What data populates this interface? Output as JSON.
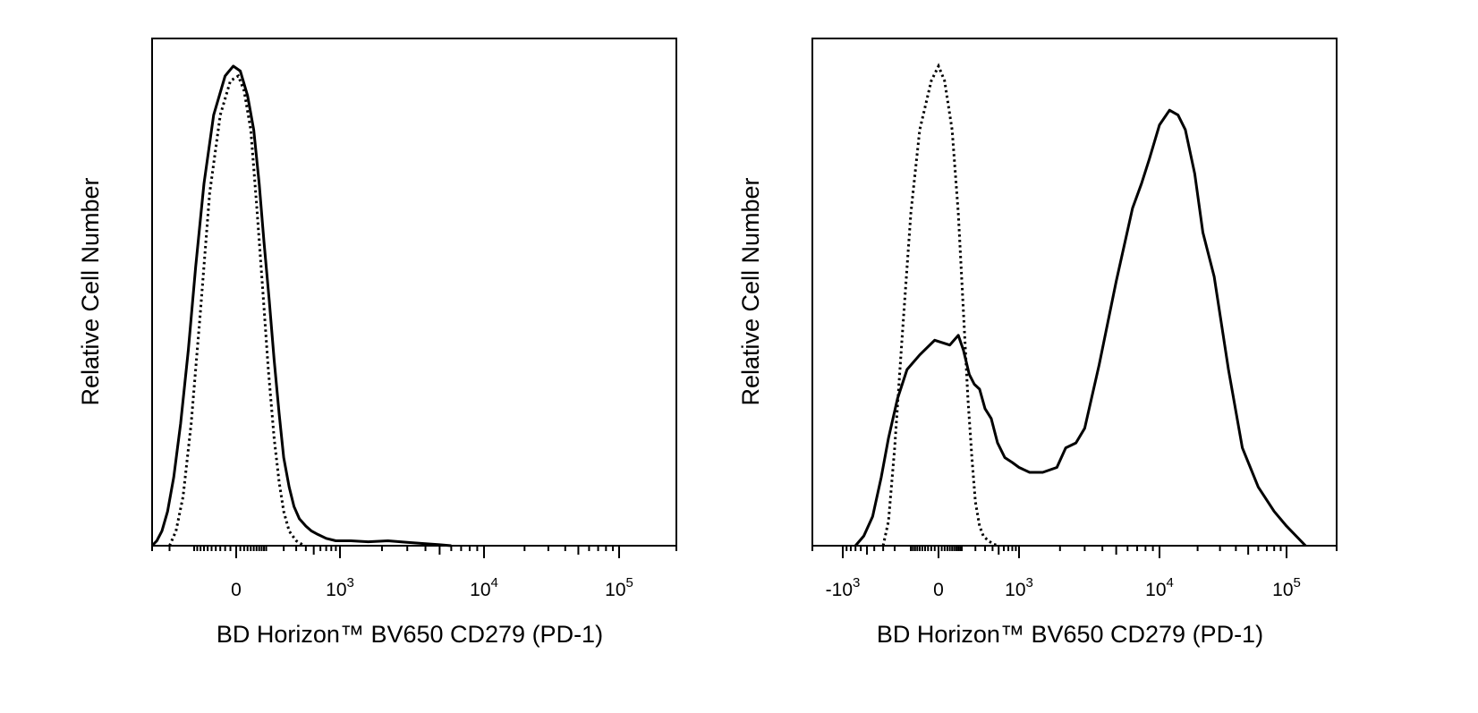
{
  "chart_data": [
    {
      "type": "line",
      "title": "",
      "xlabel": "BD Horizon™ BV650 CD279 (PD-1)",
      "ylabel": "Relative Cell Number",
      "x_scale": "biexponential",
      "xlim": [
        -300,
        200000
      ],
      "ylim": [
        0,
        100
      ],
      "grid": false,
      "legend": "none",
      "x_tick_labels": [
        {
          "value": 0,
          "base": "0",
          "exp": ""
        },
        {
          "value": 1000,
          "base": "10",
          "exp": "3"
        },
        {
          "value": 10000,
          "base": "10",
          "exp": "4"
        },
        {
          "value": 100000,
          "base": "10",
          "exp": "5"
        }
      ],
      "series": [
        {
          "style": "solid",
          "x": [
            -300,
            -270,
            -240,
            -210,
            -180,
            -150,
            -120,
            -95,
            -70,
            -45,
            -20,
            -5,
            10,
            30,
            50,
            70,
            90,
            115,
            140,
            170,
            200,
            240,
            280,
            330,
            400,
            470,
            560,
            700,
            900,
            1200,
            1600,
            2200,
            3000,
            4000,
            5000,
            6000
          ],
          "y": [
            0,
            1,
            3,
            7,
            14,
            25,
            40,
            57,
            74,
            88,
            96,
            98,
            97,
            92,
            85,
            74,
            62,
            50,
            38,
            27,
            18,
            12,
            8,
            5.5,
            4,
            3,
            2.3,
            1.5,
            1,
            1,
            0.8,
            1,
            0.7,
            0.4,
            0.2,
            0
          ]
        },
        {
          "style": "dotted",
          "x": [
            -200,
            -170,
            -140,
            -110,
            -80,
            -55,
            -30,
            -10,
            5,
            20,
            40,
            60,
            85,
            110,
            140,
            170,
            200,
            240,
            300,
            380
          ],
          "y": [
            0,
            3,
            10,
            25,
            48,
            72,
            88,
            95,
            96,
            93,
            85,
            70,
            52,
            36,
            22,
            13,
            7,
            3,
            1,
            0
          ]
        }
      ]
    },
    {
      "type": "line",
      "title": "",
      "xlabel": "BD Horizon™ BV650 CD279 (PD-1)",
      "ylabel": "Relative Cell Number",
      "x_scale": "biexponential",
      "xlim": [
        -2000,
        200000
      ],
      "ylim": [
        0,
        100
      ],
      "grid": false,
      "legend": "none",
      "x_tick_labels": [
        {
          "value": -1000,
          "base": "-10",
          "exp": "3"
        },
        {
          "value": 0,
          "base": "0",
          "exp": ""
        },
        {
          "value": 1000,
          "base": "10",
          "exp": "3"
        },
        {
          "value": 10000,
          "base": "10",
          "exp": "4"
        },
        {
          "value": 100000,
          "base": "10",
          "exp": "5"
        }
      ],
      "series": [
        {
          "style": "solid",
          "x": [
            -700,
            -550,
            -420,
            -320,
            -250,
            -180,
            -120,
            -60,
            -10,
            40,
            80,
            110,
            150,
            190,
            240,
            300,
            380,
            480,
            620,
            800,
            1000,
            1200,
            1500,
            1900,
            2200,
            2600,
            3000,
            3800,
            5000,
            6500,
            7500,
            8500,
            10000,
            12000,
            14000,
            16000,
            19000,
            22000,
            27000,
            35000,
            45000,
            60000,
            80000,
            100000,
            130000
          ],
          "y": [
            0,
            2,
            6,
            14,
            22,
            30,
            36,
            39,
            42,
            41,
            43,
            40,
            35,
            33,
            32,
            28,
            26,
            21,
            18,
            17,
            16,
            15,
            15,
            16,
            20,
            21,
            24,
            37,
            54,
            69,
            74,
            79,
            86,
            89,
            88,
            85,
            76,
            64,
            55,
            36,
            20,
            12,
            7,
            4,
            0
          ]
        },
        {
          "style": "dotted",
          "x": [
            -300,
            -250,
            -200,
            -150,
            -100,
            -60,
            -20,
            0,
            20,
            50,
            80,
            110,
            140,
            170,
            200,
            240,
            280,
            340,
            420,
            500
          ],
          "y": [
            0,
            5,
            20,
            42,
            68,
            85,
            95,
            98,
            95,
            85,
            68,
            48,
            30,
            18,
            9,
            4,
            2,
            1,
            0.3,
            0
          ]
        }
      ]
    }
  ]
}
